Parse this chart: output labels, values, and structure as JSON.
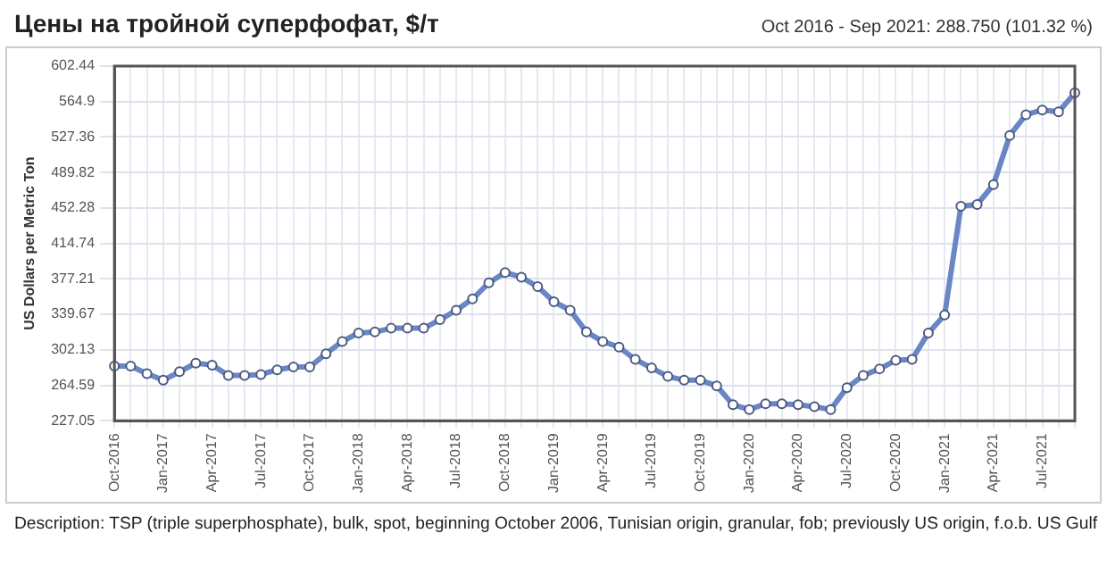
{
  "chart_data": {
    "type": "line",
    "title": "Цены на тройной суперфофат, $/т",
    "subtitle": "Oct 2016 - Sep 2021: 288.750 (101.32 %)",
    "ylabel": "US Dollars per Metric Ton",
    "annotations": [
      "Description: TSP (triple superphosphate), bulk, spot, beginning October 2006, Tunisian origin, granular, fob; previously US origin, f.o.b. US Gulf"
    ],
    "categories": [
      "Oct-2016",
      null,
      null,
      "Jan-2017",
      null,
      null,
      "Apr-2017",
      null,
      null,
      "Jul-2017",
      null,
      null,
      "Oct-2017",
      null,
      null,
      "Jan-2018",
      null,
      null,
      "Apr-2018",
      null,
      null,
      "Jul-2018",
      null,
      null,
      "Oct-2018",
      null,
      null,
      "Jan-2019",
      null,
      null,
      "Apr-2019",
      null,
      null,
      "Jul-2019",
      null,
      null,
      "Oct-2019",
      null,
      null,
      "Jan-2020",
      null,
      null,
      "Apr-2020",
      null,
      null,
      "Jul-2020",
      null,
      null,
      "Oct-2020",
      null,
      null,
      "Jan-2021",
      null,
      null,
      "Apr-2021",
      null,
      null,
      "Jul-2021",
      null,
      null
    ],
    "series": [
      {
        "color": "#6a87c5",
        "values": [
          285,
          285,
          277,
          270,
          279,
          288,
          286,
          275,
          275,
          276,
          281,
          284,
          284,
          298,
          311,
          320,
          321,
          325,
          325,
          325,
          334,
          344,
          356,
          373,
          384,
          379,
          369,
          353,
          344,
          321,
          311,
          305,
          292,
          283,
          274,
          270,
          270,
          264,
          244,
          239,
          245,
          245,
          244,
          242,
          239,
          262,
          275,
          282,
          291,
          292,
          320,
          339,
          454,
          456,
          477,
          529,
          551,
          556,
          554,
          574
        ]
      }
    ],
    "ylim": [
      227.05,
      602.44
    ],
    "yticks": [
      227.05,
      264.59,
      302.13,
      339.67,
      377.21,
      414.74,
      452.28,
      489.82,
      527.36,
      564.9,
      602.44
    ],
    "grid": true,
    "marker": "circle",
    "line_style": "solid",
    "legend": false
  }
}
